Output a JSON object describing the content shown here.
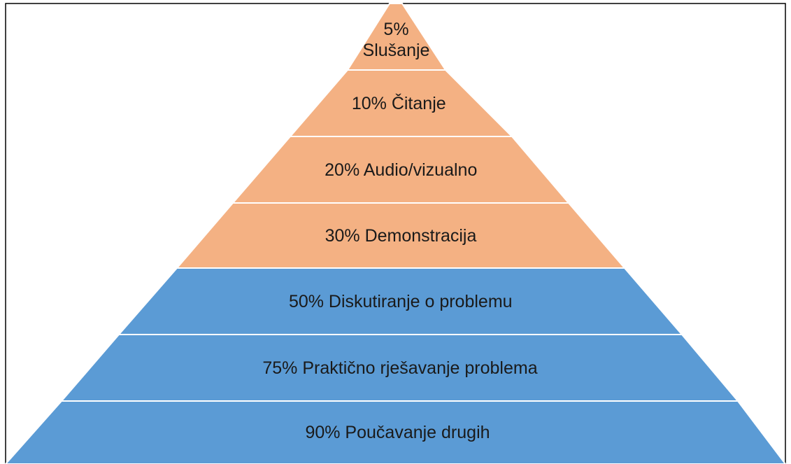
{
  "layers": [
    {
      "label": "5% Slušanje",
      "color": "#f4b183"
    },
    {
      "label": "10% Čitanje",
      "color": "#f4b183"
    },
    {
      "label": "20% Audio/vizualno",
      "color": "#f4b183"
    },
    {
      "label": "30% Demonstracija",
      "color": "#f4b183"
    },
    {
      "label": "50% Diskutiranje o problemu",
      "color": "#5b9bd5"
    },
    {
      "label": "75% Praktično rješavanje problema",
      "color": "#5b9bd5"
    },
    {
      "label": "90% Poučavanje drugih",
      "color": "#5b9bd5"
    }
  ]
}
